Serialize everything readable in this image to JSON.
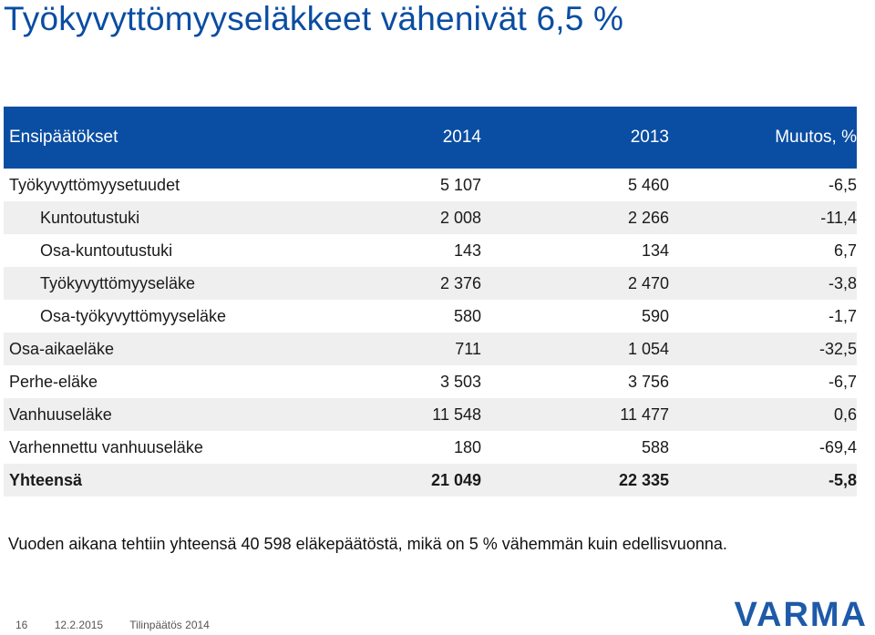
{
  "title": "Työkyvyttömyyseläkkeet vähenivät 6,5 %",
  "table": {
    "headers": [
      "Ensipäätökset",
      "2014",
      "2013",
      "Muutos, %"
    ],
    "rows": [
      {
        "label": "Työkyvyttömyysetuudet",
        "y2014": "5 107",
        "y2013": "5 460",
        "change": "-6,5"
      },
      {
        "label": "Kuntoutustuki",
        "y2014": "2 008",
        "y2013": "2 266",
        "change": "-11,4"
      },
      {
        "label": "Osa-kuntoutustuki",
        "y2014": "143",
        "y2013": "134",
        "change": "6,7"
      },
      {
        "label": "Työkyvyttömyyseläke",
        "y2014": "2 376",
        "y2013": "2 470",
        "change": "-3,8"
      },
      {
        "label": "Osa-työkyvyttömyyseläke",
        "y2014": "580",
        "y2013": "590",
        "change": "-1,7"
      },
      {
        "label": "Osa-aikaeläke",
        "y2014": "711",
        "y2013": "1 054",
        "change": "-32,5"
      },
      {
        "label": "Perhe-eläke",
        "y2014": "3 503",
        "y2013": "3 756",
        "change": "-6,7"
      },
      {
        "label": "Vanhuuseläke",
        "y2014": "11 548",
        "y2013": "11 477",
        "change": "0,6"
      },
      {
        "label": "Varhennettu vanhuuseläke",
        "y2014": "180",
        "y2013": "588",
        "change": "-69,4"
      },
      {
        "label": "Yhteensä",
        "y2014": "21 049",
        "y2013": "22 335",
        "change": "-5,8"
      }
    ]
  },
  "footnote": "Vuoden aikana tehtiin yhteensä 40 598 eläkepäätöstä, mikä on 5 % vähemmän kuin edellisvuonna.",
  "footer": {
    "page": "16",
    "date": "12.2.2015",
    "doc": "Tilinpäätös 2014"
  },
  "logo": "VARMA",
  "colors": {
    "header_bg": "#0a4ea3",
    "title": "#0a4da2",
    "row_shade": "#efefef",
    "logo": "#1e5aa8"
  }
}
